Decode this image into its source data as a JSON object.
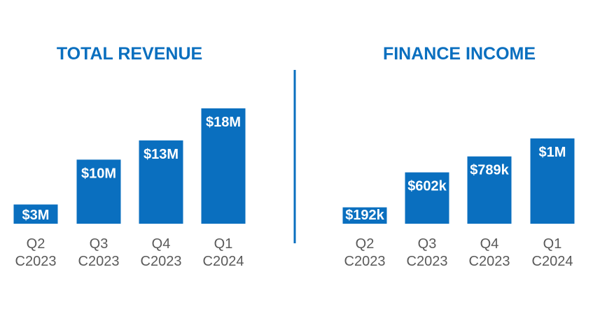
{
  "chart_data": [
    {
      "type": "bar",
      "title": "TOTAL REVENUE",
      "categories": [
        [
          "Q2",
          "C2023"
        ],
        [
          "Q3",
          "C2023"
        ],
        [
          "Q4",
          "C2023"
        ],
        [
          "Q1",
          "C2024"
        ]
      ],
      "values": [
        3,
        10,
        13,
        18
      ],
      "units": "$M",
      "data_labels": [
        "$3M",
        "$10M",
        "$13M",
        "$18M"
      ],
      "xlabel": "",
      "ylabel": "",
      "ylim": [
        0,
        18
      ],
      "grid": false,
      "legend": "none"
    },
    {
      "type": "bar",
      "title": "FINANCE INCOME",
      "categories": [
        [
          "Q2",
          "C2023"
        ],
        [
          "Q3",
          "C2023"
        ],
        [
          "Q4",
          "C2023"
        ],
        [
          "Q1",
          "C2024"
        ]
      ],
      "values": [
        192,
        602,
        789,
        1000
      ],
      "units": "$k",
      "data_labels": [
        "$192k",
        "$602k",
        "$789k",
        "$1M"
      ],
      "xlabel": "",
      "ylabel": "",
      "ylim": [
        0,
        1000
      ],
      "grid": false,
      "legend": "none"
    }
  ],
  "colors": {
    "accent": "#0a6fbf",
    "tick_text": "#5a5a5a",
    "label_text": "#ffffff"
  }
}
